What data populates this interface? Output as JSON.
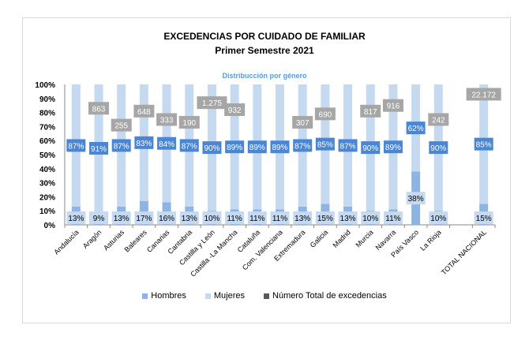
{
  "chart_data": {
    "type": "bar",
    "stacked": true,
    "title": "EXCEDENCIAS POR CUIDADO DE FAMILIAR",
    "subtitle": "Primer Semestre 2021",
    "inner_title": "Distribucción por género",
    "categories": [
      "Andalucía",
      "Aragón",
      "Asturias",
      "Baleares",
      "Canarias",
      "Cantabria",
      "Castilla y León",
      "Castilla -La Mancha",
      "Cataluña",
      "Com. Valenciana",
      "Extremadura",
      "Galicia",
      "Madrid",
      "Murcia",
      "Navarra",
      "País Vasco",
      "La Rioja",
      "",
      "TOTAL NACIONAL"
    ],
    "series": [
      {
        "name": "Hombres",
        "color": "#8db4e2",
        "values": [
          13,
          9,
          13,
          17,
          16,
          13,
          10,
          11,
          11,
          11,
          13,
          15,
          13,
          10,
          11,
          38,
          10,
          null,
          15
        ]
      },
      {
        "name": "Mujeres",
        "color": "#c5d9f1",
        "values": [
          87,
          91,
          87,
          83,
          84,
          87,
          90,
          89,
          89,
          89,
          87,
          85,
          87,
          90,
          89,
          62,
          90,
          null,
          85
        ]
      },
      {
        "name": "Número Total de excedencias",
        "color": "#808080",
        "labels": [
          null,
          "863",
          "255",
          "648",
          "333",
          "190",
          "1.275",
          "932",
          null,
          null,
          "307",
          "690",
          null,
          "817",
          "916",
          null,
          "242",
          null,
          "22.172"
        ]
      }
    ],
    "ylim": [
      0,
      100
    ],
    "yticks": [
      "0%",
      "10%",
      "20%",
      "30%",
      "40%",
      "50%",
      "60%",
      "70%",
      "80%",
      "90%",
      "100%"
    ],
    "legend": "bottom",
    "label_colors": {
      "mujeres_box": "#4a86d4",
      "hombres_box": "#c5d9f1",
      "total_box": "#a6a6a6"
    }
  }
}
